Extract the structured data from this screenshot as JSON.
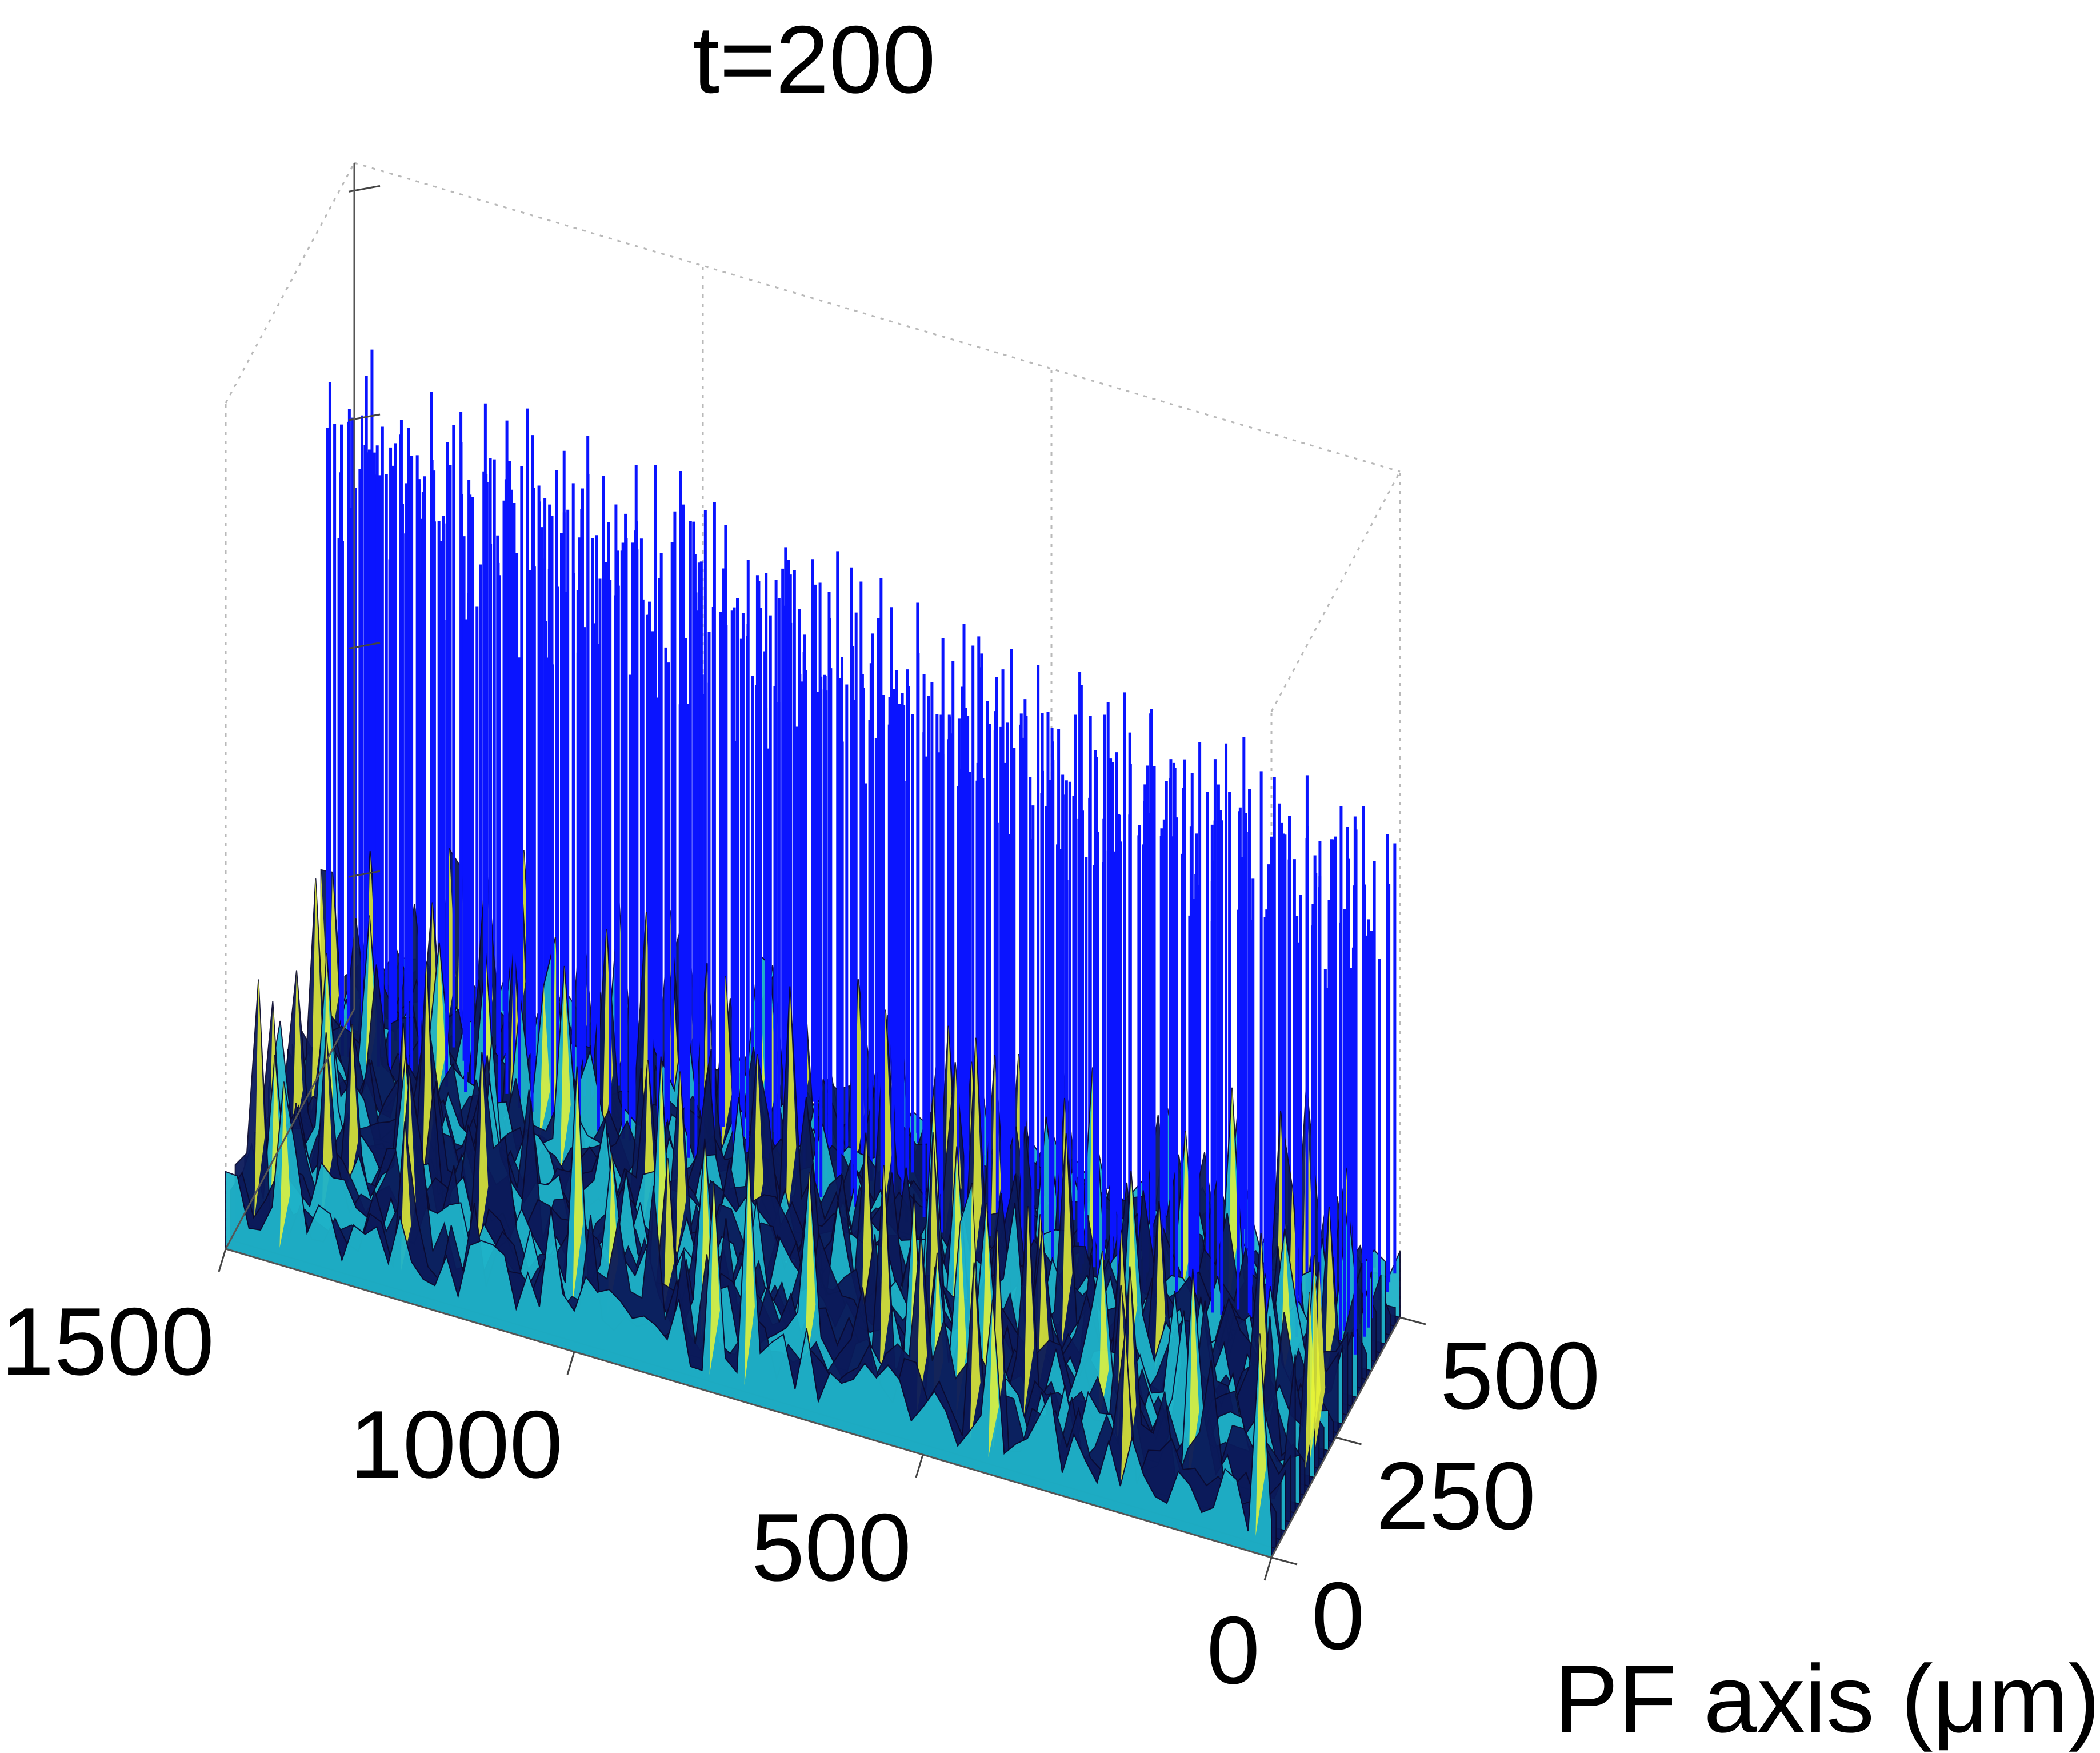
{
  "chart_data": {
    "type": "surface",
    "title": "t=200",
    "xlabel": "",
    "ylabel": "PF axis (μm)",
    "zlabel": "",
    "x_axis": {
      "ticks": [
        0,
        500,
        1000,
        1500
      ],
      "range": [
        0,
        1500
      ]
    },
    "y_axis": {
      "ticks": [
        0,
        250,
        500
      ],
      "range": [
        0,
        500
      ]
    },
    "z_axis": {
      "ticks": [],
      "tick_count": 4
    },
    "grid": true,
    "colormap": "parula",
    "colors": {
      "spike": "#0a14ff",
      "base": "#0b1a5a",
      "peak": "#e9f536",
      "mid": "#1fb3c9"
    },
    "description_free": true
  }
}
